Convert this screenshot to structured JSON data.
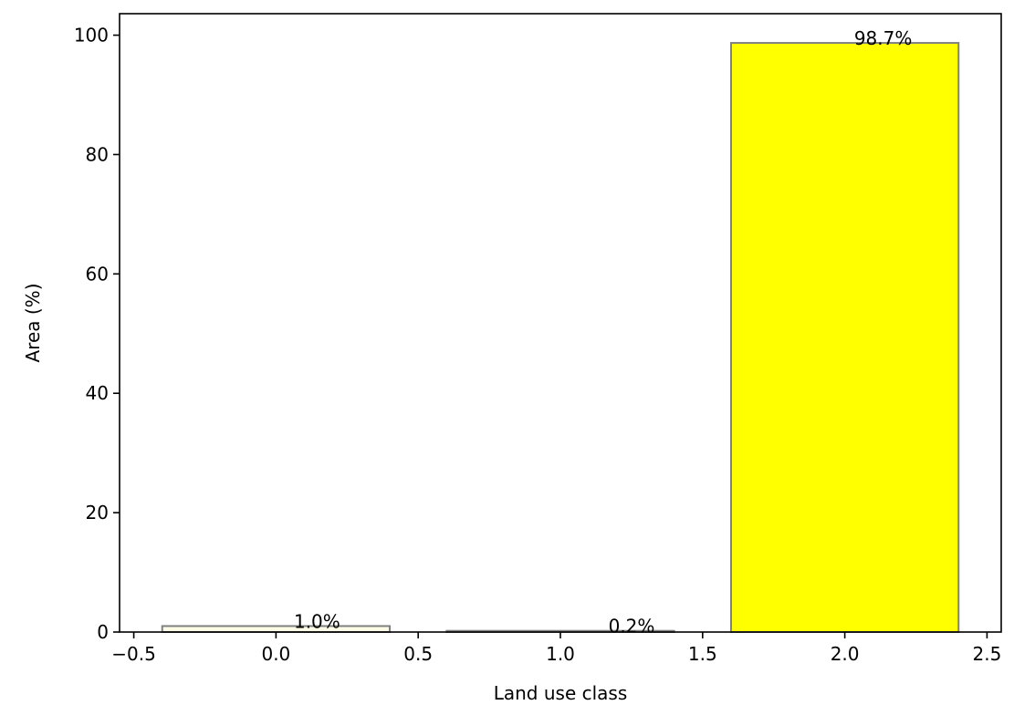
{
  "chart_data": {
    "type": "bar",
    "title": "",
    "xlabel": "Land use class",
    "ylabel": "Area (%)",
    "xlim": [
      -0.55,
      2.55
    ],
    "ylim": [
      0,
      103.6
    ],
    "grid": false,
    "bars": [
      {
        "x": 0.0,
        "value": 1.0,
        "label": "1.0%",
        "color": "#fffde6"
      },
      {
        "x": 1.0,
        "value": 0.2,
        "label": "0.2%",
        "color": "#e0d060"
      },
      {
        "x": 2.0,
        "value": 98.7,
        "label": "98.7%",
        "color": "#ffff00"
      }
    ],
    "bar_width": 0.8,
    "edge_color": "#808080",
    "x_ticks": [
      {
        "value": -0.5,
        "label": "−0.5"
      },
      {
        "value": 0.0,
        "label": "0.0"
      },
      {
        "value": 0.5,
        "label": "0.5"
      },
      {
        "value": 1.0,
        "label": "1.0"
      },
      {
        "value": 1.5,
        "label": "1.5"
      },
      {
        "value": 2.0,
        "label": "2.0"
      },
      {
        "value": 2.5,
        "label": "2.5"
      }
    ],
    "y_ticks": [
      {
        "value": 0,
        "label": "0"
      },
      {
        "value": 20,
        "label": "20"
      },
      {
        "value": 40,
        "label": "40"
      },
      {
        "value": 60,
        "label": "60"
      },
      {
        "value": 80,
        "label": "80"
      },
      {
        "value": 100,
        "label": "100"
      }
    ]
  }
}
